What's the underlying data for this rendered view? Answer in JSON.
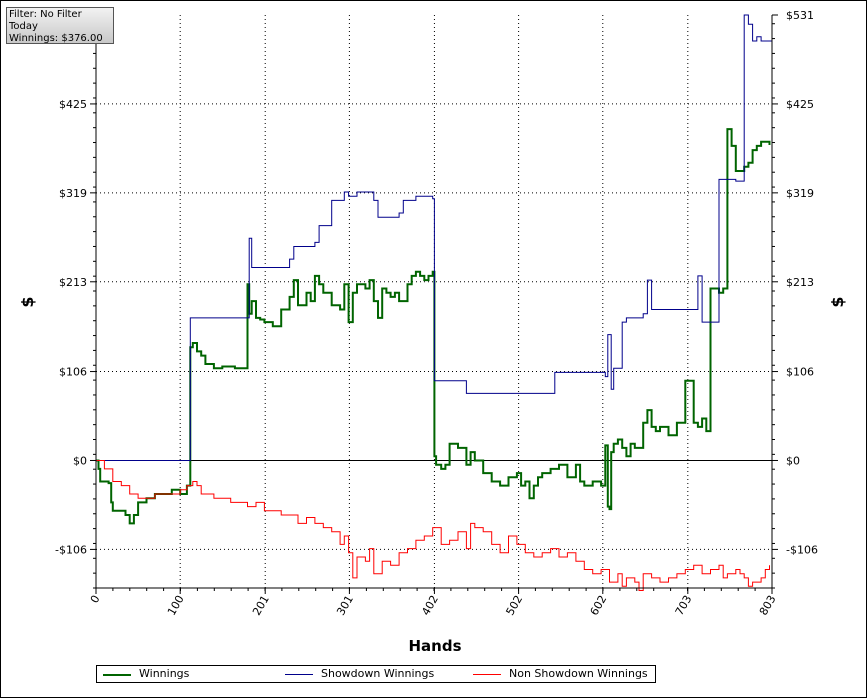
{
  "filter_panel": {
    "filter_line": "Filter: No Filter",
    "period_line": "Today",
    "winnings_line": "Winnings: $376.00"
  },
  "chart_data": {
    "type": "line",
    "xlabel": "Hands",
    "ylabel": "$",
    "xlim": [
      0,
      803
    ],
    "ylim": [
      -152,
      531
    ],
    "x_ticks": [
      0,
      100,
      201,
      301,
      402,
      502,
      602,
      703,
      803
    ],
    "y_ticks": [
      -106,
      0,
      106,
      213,
      319,
      425,
      531
    ],
    "y_tick_labels": [
      "-$106",
      "$0",
      "$106",
      "$213",
      "$319",
      "$425",
      "$531"
    ],
    "grid": true,
    "legend": "bottom",
    "series": [
      {
        "name": "Winnings",
        "color": "#006400",
        "x": [
          0,
          3,
          5,
          15,
          18,
          20,
          35,
          40,
          45,
          50,
          60,
          70,
          80,
          90,
          100,
          108,
          112,
          115,
          120,
          125,
          130,
          140,
          150,
          165,
          180,
          182,
          185,
          190,
          195,
          200,
          210,
          220,
          230,
          235,
          240,
          250,
          255,
          260,
          265,
          270,
          280,
          290,
          295,
          300,
          305,
          310,
          320,
          325,
          330,
          335,
          340,
          345,
          350,
          355,
          360,
          370,
          375,
          380,
          385,
          390,
          395,
          400,
          402,
          404,
          410,
          415,
          420,
          430,
          440,
          445,
          450,
          460,
          470,
          480,
          490,
          500,
          505,
          510,
          515,
          520,
          525,
          530,
          540,
          550,
          560,
          570,
          575,
          580,
          590,
          600,
          605,
          608,
          610,
          612,
          615,
          620,
          625,
          630,
          635,
          640,
          650,
          655,
          660,
          665,
          670,
          680,
          690,
          700,
          710,
          715,
          720,
          725,
          730,
          740,
          745,
          750,
          755,
          760,
          770,
          775,
          780,
          785,
          790,
          795,
          800
        ],
        "y": [
          0,
          -10,
          -25,
          -27,
          -50,
          -60,
          -65,
          -75,
          -65,
          -50,
          -45,
          -40,
          -40,
          -35,
          -40,
          -30,
          135,
          140,
          130,
          125,
          115,
          110,
          112,
          110,
          210,
          175,
          190,
          170,
          168,
          165,
          160,
          180,
          195,
          215,
          185,
          200,
          190,
          220,
          210,
          200,
          185,
          180,
          210,
          165,
          200,
          210,
          205,
          215,
          190,
          170,
          205,
          200,
          195,
          200,
          190,
          210,
          220,
          225,
          220,
          215,
          220,
          225,
          5,
          -5,
          -10,
          -5,
          20,
          15,
          -5,
          10,
          0,
          -15,
          -25,
          -30,
          -20,
          -15,
          -30,
          -25,
          -45,
          -30,
          -20,
          -15,
          -10,
          -5,
          -20,
          -5,
          -25,
          -30,
          -25,
          -30,
          18,
          -55,
          -58,
          10,
          20,
          25,
          15,
          5,
          20,
          15,
          45,
          60,
          40,
          35,
          40,
          30,
          45,
          95,
          45,
          40,
          50,
          35,
          205,
          200,
          205,
          395,
          375,
          345,
          350,
          355,
          370,
          375,
          380,
          380,
          376
        ]
      },
      {
        "name": "Showdown Winnings",
        "color": "#00008b",
        "x": [
          0,
          108,
          112,
          175,
          180,
          182,
          185,
          225,
          230,
          235,
          260,
          265,
          280,
          295,
          300,
          310,
          330,
          335,
          360,
          365,
          380,
          400,
          402,
          404,
          440,
          450,
          540,
          545,
          600,
          605,
          608,
          612,
          615,
          625,
          630,
          650,
          655,
          660,
          710,
          715,
          720,
          735,
          740,
          755,
          760,
          770,
          775,
          780,
          785,
          790,
          803
        ],
        "y": [
          0,
          0,
          170,
          170,
          170,
          265,
          230,
          230,
          240,
          255,
          260,
          280,
          310,
          320,
          315,
          320,
          310,
          290,
          295,
          310,
          315,
          312,
          95,
          95,
          80,
          80,
          80,
          105,
          105,
          100,
          150,
          85,
          110,
          165,
          170,
          175,
          215,
          180,
          180,
          220,
          165,
          165,
          335,
          335,
          333,
          531,
          520,
          500,
          505,
          500,
          500
        ]
      },
      {
        "name": "Non Showdown Winnings",
        "color": "#ff0000",
        "x": [
          0,
          10,
          20,
          30,
          40,
          50,
          60,
          70,
          80,
          90,
          100,
          108,
          115,
          120,
          125,
          140,
          160,
          180,
          190,
          200,
          210,
          220,
          230,
          240,
          250,
          260,
          270,
          280,
          290,
          295,
          300,
          305,
          310,
          320,
          325,
          330,
          340,
          350,
          360,
          370,
          380,
          390,
          400,
          410,
          420,
          430,
          440,
          445,
          450,
          460,
          470,
          480,
          490,
          500,
          510,
          520,
          530,
          540,
          550,
          560,
          570,
          580,
          590,
          600,
          610,
          620,
          625,
          630,
          640,
          645,
          650,
          660,
          670,
          680,
          690,
          700,
          710,
          720,
          730,
          740,
          745,
          750,
          760,
          765,
          770,
          775,
          780,
          790,
          795,
          800
        ],
        "y": [
          0,
          -10,
          -25,
          -30,
          -40,
          -45,
          -45,
          -40,
          -40,
          -40,
          -35,
          -30,
          -25,
          -30,
          -40,
          -45,
          -50,
          -55,
          -50,
          -60,
          -60,
          -65,
          -65,
          -75,
          -68,
          -75,
          -80,
          -85,
          -100,
          -90,
          -110,
          -140,
          -115,
          -120,
          -105,
          -135,
          -120,
          -125,
          -110,
          -105,
          -95,
          -90,
          -80,
          -100,
          -95,
          -85,
          -105,
          -75,
          -80,
          -85,
          -100,
          -110,
          -90,
          -100,
          -110,
          -115,
          -110,
          -105,
          -115,
          -110,
          -120,
          -130,
          -135,
          -130,
          -145,
          -135,
          -150,
          -140,
          -145,
          -155,
          -135,
          -140,
          -145,
          -140,
          -135,
          -130,
          -125,
          -135,
          -130,
          -125,
          -140,
          -135,
          -130,
          -135,
          -140,
          -150,
          -145,
          -140,
          -130,
          -125
        ]
      }
    ]
  }
}
